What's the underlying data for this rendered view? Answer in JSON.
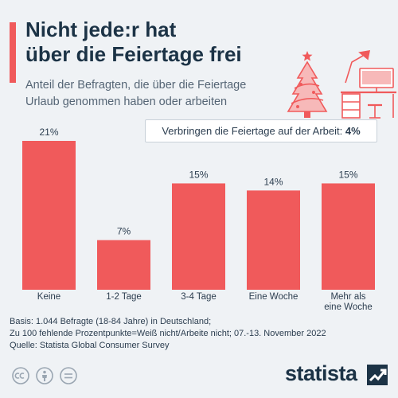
{
  "header": {
    "title_line1": "Nicht jede:r hat",
    "title_line2": "über die Feiertage frei",
    "subtitle_line1": "Anteil der Befragten, die über die Feiertage",
    "subtitle_line2": "Urlaub genommen haben oder arbeiten"
  },
  "callout": {
    "label": "Verbringen die Feiertage auf der Arbeit:",
    "value": "4%"
  },
  "footer": {
    "line1": "Basis: 1.044 Befragte (18-84 Jahre) in Deutschland;",
    "line2": "Zu 100 fehlende Prozentpunkte=Weiß nicht/Arbeite nicht; 07.-13. November 2022",
    "line3": "Quelle: Statista Global Consumer Survey"
  },
  "brand": {
    "name": "statista"
  },
  "colors": {
    "accent": "#f05a5b",
    "bar": "#f05a5b",
    "background": "#eff2f5",
    "title": "#1c3346"
  },
  "icons": [
    "christmas-tree-icon",
    "desk-workplace-icon",
    "cc-icon",
    "by-person-icon",
    "equals-icon",
    "statista-logo-icon"
  ],
  "chart_data": {
    "type": "bar",
    "categories": [
      [
        "Keine"
      ],
      [
        "1-2 Tage"
      ],
      [
        "3-4 Tage"
      ],
      [
        "Eine Woche"
      ],
      [
        "Mehr als",
        "eine Woche"
      ]
    ],
    "values": [
      21,
      7,
      15,
      14,
      15
    ],
    "value_labels": [
      "21%",
      "7%",
      "15%",
      "14%",
      "15%"
    ],
    "unit": "%",
    "ylim": [
      0,
      21
    ],
    "grid": false,
    "legend": "none"
  }
}
